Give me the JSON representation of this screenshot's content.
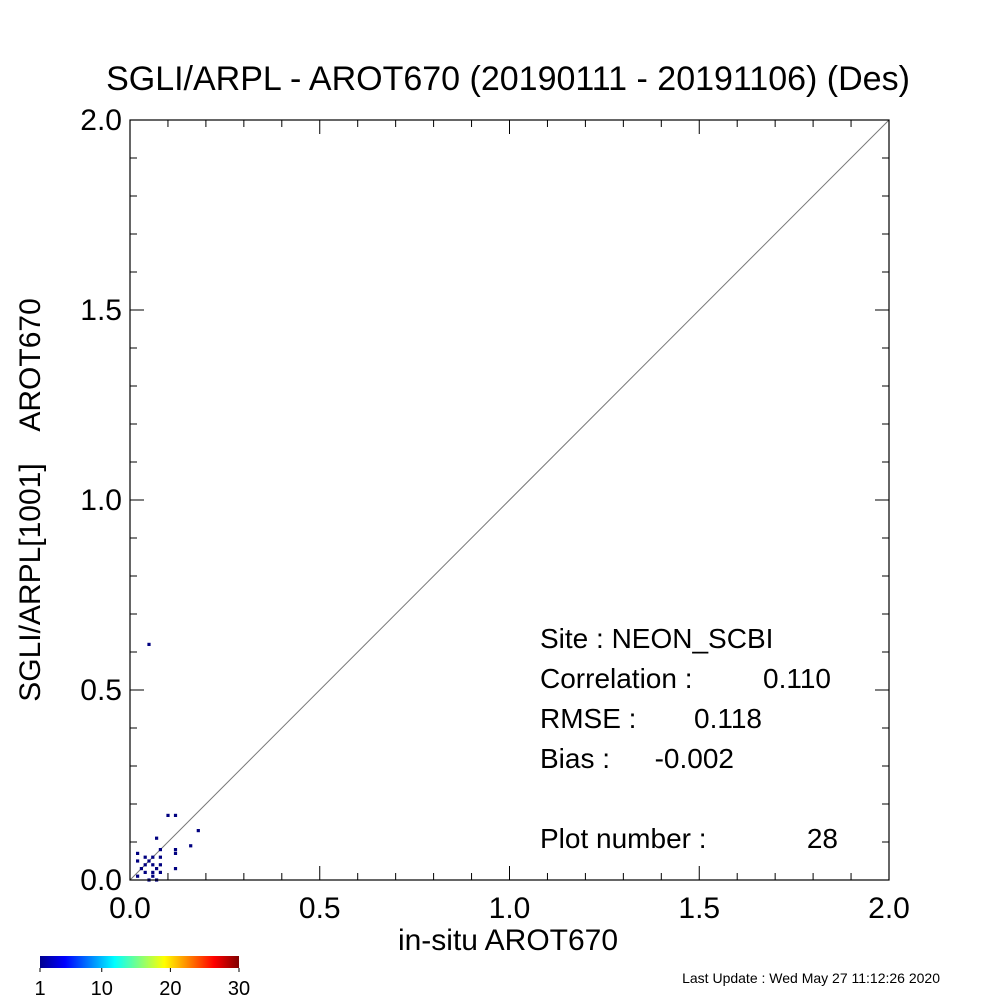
{
  "chart_data": {
    "type": "heatmap",
    "title": "SGLI/ARPL - AROT670 (20190111 - 20191106) (Des)",
    "xlabel": "in-situ AROT670",
    "ylabel": "SGLI/ARPL[1001]    AROT670",
    "xlim": [
      0,
      2
    ],
    "ylim": [
      0,
      2
    ],
    "x_ticks": [
      "0.0",
      "0.5",
      "1.0",
      "1.5",
      "2.0"
    ],
    "y_ticks": [
      "0.0",
      "0.5",
      "1.0",
      "1.5",
      "2.0"
    ],
    "grid": false,
    "reference_line": "1:1",
    "bin_size": 0.02,
    "cells": [
      {
        "x": 0.05,
        "y": 0.62,
        "count": 1
      },
      {
        "x": 0.1,
        "y": 0.17,
        "count": 1
      },
      {
        "x": 0.12,
        "y": 0.17,
        "count": 1
      },
      {
        "x": 0.18,
        "y": 0.13,
        "count": 1
      },
      {
        "x": 0.07,
        "y": 0.11,
        "count": 1
      },
      {
        "x": 0.16,
        "y": 0.09,
        "count": 1
      },
      {
        "x": 0.12,
        "y": 0.08,
        "count": 1
      },
      {
        "x": 0.12,
        "y": 0.07,
        "count": 1
      },
      {
        "x": 0.12,
        "y": 0.03,
        "count": 1
      },
      {
        "x": 0.02,
        "y": 0.07,
        "count": 1
      },
      {
        "x": 0.02,
        "y": 0.05,
        "count": 1
      },
      {
        "x": 0.08,
        "y": 0.08,
        "count": 1
      },
      {
        "x": 0.08,
        "y": 0.06,
        "count": 1
      },
      {
        "x": 0.04,
        "y": 0.04,
        "count": 1
      },
      {
        "x": 0.06,
        "y": 0.04,
        "count": 1
      },
      {
        "x": 0.08,
        "y": 0.04,
        "count": 1
      },
      {
        "x": 0.06,
        "y": 0.06,
        "count": 1
      },
      {
        "x": 0.02,
        "y": 0.01,
        "count": 1
      },
      {
        "x": 0.04,
        "y": 0.02,
        "count": 1
      },
      {
        "x": 0.06,
        "y": 0.02,
        "count": 1
      },
      {
        "x": 0.08,
        "y": 0.02,
        "count": 1
      },
      {
        "x": 0.05,
        "y": 0.0,
        "count": 1
      },
      {
        "x": 0.07,
        "y": 0.0,
        "count": 1
      },
      {
        "x": 0.03,
        "y": 0.03,
        "count": 1
      },
      {
        "x": 0.05,
        "y": 0.05,
        "count": 1
      },
      {
        "x": 0.07,
        "y": 0.03,
        "count": 1
      },
      {
        "x": 0.04,
        "y": 0.06,
        "count": 1
      },
      {
        "x": 0.06,
        "y": 0.01,
        "count": 1
      }
    ],
    "stats": {
      "site_label": "Site : NEON_SCBI",
      "correlation_label": "Correlation :",
      "correlation": "0.110",
      "rmse_label": "RMSE :",
      "rmse": "0.118",
      "bias_label": "Bias :",
      "bias": "-0.002",
      "plot_number_label": "Plot number :",
      "plot_number": "28"
    },
    "colorbar": {
      "colormap": "jet",
      "range": [
        1,
        30
      ],
      "tick_labels": [
        "1",
        "10",
        "20",
        "30"
      ],
      "tick_values": [
        1,
        10,
        20,
        30
      ]
    },
    "footer": "Last Update : Wed May 27 11:12:26 2020"
  }
}
